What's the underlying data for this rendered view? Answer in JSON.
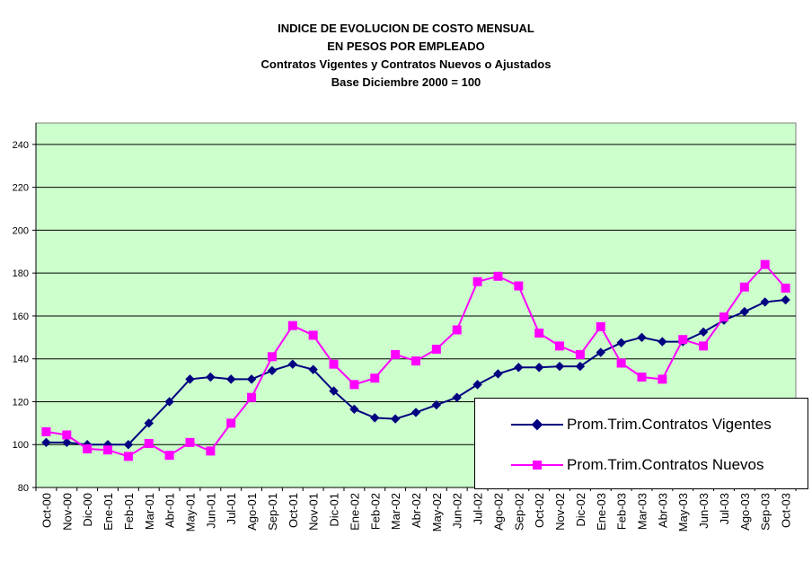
{
  "header": {
    "line1": "INDICE DE EVOLUCION DE COSTO MENSUAL",
    "line2": "EN PESOS POR EMPLEADO",
    "line3": "Contratos Vigentes y Contratos Nuevos o Ajustados",
    "line4": "Base Diciembre 2000 = 100"
  },
  "chart_data": {
    "type": "line",
    "title": "INDICE DE EVOLUCION DE COSTO MENSUAL EN PESOS POR EMPLEADO",
    "subtitle": "Contratos Vigentes y Contratos Nuevos o Ajustados — Base Diciembre 2000 = 100",
    "xlabel": "",
    "ylabel": "",
    "ylim": [
      80,
      250
    ],
    "yticks": [
      80,
      100,
      120,
      140,
      160,
      180,
      200,
      220,
      240
    ],
    "grid": true,
    "plot_background": "#ccffcc",
    "legend_position": "bottom-right",
    "categories": [
      "Oct-00",
      "Nov-00",
      "Dic-00",
      "Ene-01",
      "Feb-01",
      "Mar-01",
      "Abr-01",
      "May-01",
      "Jun-01",
      "Jul-01",
      "Ago-01",
      "Sep-01",
      "Oct-01",
      "Nov-01",
      "Dic-01",
      "Ene-02",
      "Feb-02",
      "Mar-02",
      "Abr-02",
      "May-02",
      "Jun-02",
      "Jul-02",
      "Ago-02",
      "Sep-02",
      "Oct-02",
      "Nov-02",
      "Dic-02",
      "Ene-03",
      "Feb-03",
      "Mar-03",
      "Abr-03",
      "May-03",
      "Jun-03",
      "Jul-03",
      "Ago-03",
      "Sep-03",
      "Oct-03"
    ],
    "series": [
      {
        "name": "Prom.Trim.Contratos Vigentes",
        "color": "#000080",
        "marker": "diamond",
        "values": [
          101,
          101,
          100,
          100,
          100,
          110,
          120,
          130.5,
          131.5,
          130.5,
          130.5,
          134.5,
          137.5,
          135,
          125,
          116.5,
          112.5,
          112,
          115,
          118.5,
          122,
          128,
          133,
          136,
          136,
          136.5,
          136.5,
          143,
          147.5,
          150,
          148,
          148,
          152.5,
          158,
          162,
          166.5,
          167.5
        ]
      },
      {
        "name": "Prom.Trim.Contratos Nuevos",
        "color": "#ff00ff",
        "marker": "square",
        "values": [
          106,
          104.5,
          98,
          97.5,
          94.5,
          100.5,
          95,
          101,
          97,
          110,
          122,
          141,
          155.5,
          151,
          137.5,
          128,
          131,
          142,
          139,
          144.5,
          153.5,
          176,
          178.5,
          174,
          152,
          146,
          142,
          155,
          138,
          131.5,
          130.5,
          149,
          146,
          159.5,
          173.5,
          184,
          173
        ]
      }
    ]
  }
}
